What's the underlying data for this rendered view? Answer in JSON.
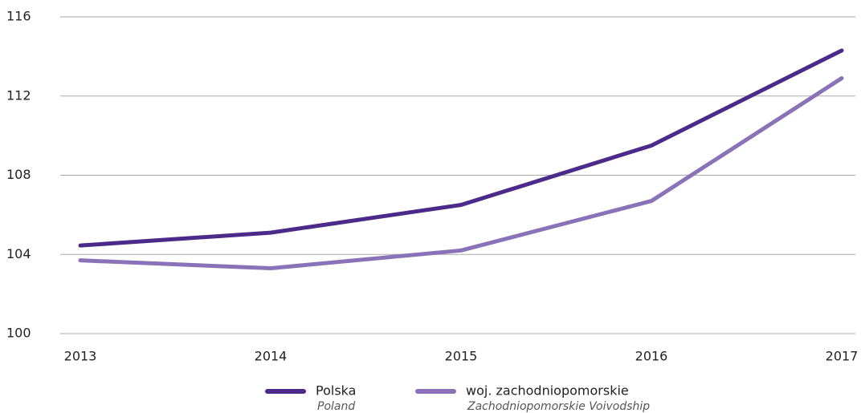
{
  "chart_data": {
    "type": "line",
    "categories": [
      "2013",
      "2014",
      "2015",
      "2016",
      "2017"
    ],
    "series": [
      {
        "name": "Polska",
        "name_translation": "Poland",
        "color": "#4b2a8a",
        "values": [
          104.45,
          105.1,
          106.5,
          109.5,
          114.3
        ]
      },
      {
        "name": "woj. zachodniopomorskie",
        "name_translation": "Zachodniopomorskie Voivodship",
        "color": "#8a72b8",
        "values": [
          103.7,
          103.3,
          104.2,
          106.7,
          112.9
        ]
      }
    ],
    "ylim": [
      100,
      116
    ],
    "yticks": [
      100,
      104,
      108,
      112,
      116
    ],
    "grid": true,
    "legend": "bottom"
  }
}
